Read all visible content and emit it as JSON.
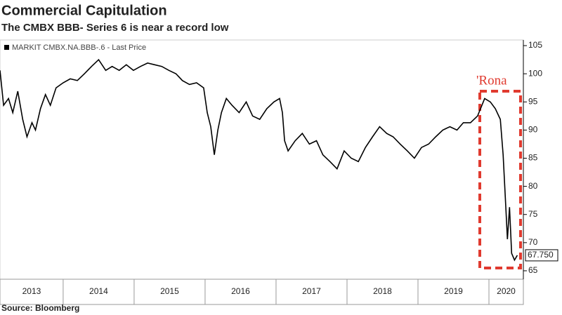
{
  "chart_data": {
    "type": "line",
    "title": "Commercial Capitulation",
    "subtitle": "The CMBX BBB- Series 6 is near a record low",
    "source": "Source: Bloomberg",
    "annotation": "'Rona",
    "x": [
      2013.11,
      2013.16,
      2013.23,
      2013.29,
      2013.36,
      2013.43,
      2013.49,
      2013.56,
      2013.61,
      2013.68,
      2013.75,
      2013.82,
      2013.9,
      2014.0,
      2014.1,
      2014.2,
      2014.3,
      2014.4,
      2014.5,
      2014.6,
      2014.69,
      2014.79,
      2014.89,
      2014.99,
      2015.09,
      2015.19,
      2015.29,
      2015.39,
      2015.49,
      2015.59,
      2015.68,
      2015.78,
      2015.88,
      2015.98,
      2016.03,
      2016.08,
      2016.13,
      2016.18,
      2016.23,
      2016.3,
      2016.38,
      2016.48,
      2016.58,
      2016.67,
      2016.77,
      2016.87,
      2016.97,
      2017.05,
      2017.09,
      2017.12,
      2017.17,
      2017.27,
      2017.37,
      2017.47,
      2017.57,
      2017.66,
      2017.76,
      2017.86,
      2017.96,
      2018.06,
      2018.16,
      2018.26,
      2018.36,
      2018.46,
      2018.56,
      2018.65,
      2018.75,
      2018.85,
      2018.95,
      2019.05,
      2019.15,
      2019.25,
      2019.35,
      2019.45,
      2019.55,
      2019.64,
      2019.74,
      2019.84,
      2019.94,
      2020.02,
      2020.09,
      2020.16,
      2020.2,
      2020.24,
      2020.26,
      2020.29,
      2020.32,
      2020.36,
      2020.4
    ],
    "series": [
      {
        "name": "MARKIT CMBX.NA.BBB-.6 - Last Price",
        "color": "#000000",
        "values": [
          100.6,
          94.4,
          95.6,
          93.1,
          96.9,
          91.9,
          88.8,
          91.3,
          90.0,
          93.8,
          96.3,
          94.4,
          97.5,
          98.4,
          99.1,
          98.8,
          100.0,
          101.3,
          102.5,
          100.6,
          101.3,
          100.6,
          101.6,
          100.6,
          101.3,
          101.9,
          101.6,
          101.3,
          100.6,
          100.0,
          98.8,
          98.1,
          98.4,
          97.5,
          93.1,
          90.6,
          85.6,
          90.0,
          93.1,
          95.6,
          94.4,
          93.1,
          95.0,
          92.5,
          91.9,
          93.8,
          95.0,
          95.6,
          93.1,
          88.1,
          86.3,
          88.1,
          89.4,
          87.5,
          88.1,
          85.6,
          84.4,
          83.1,
          86.3,
          85.0,
          84.4,
          86.9,
          88.8,
          90.6,
          89.4,
          88.8,
          87.5,
          86.3,
          85.0,
          86.9,
          87.5,
          88.8,
          90.0,
          90.6,
          90.0,
          91.3,
          91.3,
          92.5,
          95.6,
          95.0,
          93.8,
          91.9,
          85.6,
          75.6,
          70.6,
          76.3,
          68.1,
          66.9,
          67.75
        ],
        "value_labels": [
          null,
          null,
          null,
          null,
          null,
          null,
          null,
          null,
          null,
          null,
          null,
          null,
          null,
          null,
          null,
          null,
          null,
          null,
          null,
          null,
          null,
          null,
          null,
          null,
          null,
          null,
          null,
          null,
          null,
          null,
          null,
          null,
          null,
          null,
          null,
          null,
          null,
          null,
          null,
          null,
          null,
          null,
          null,
          null,
          null,
          null,
          null,
          null,
          null,
          null,
          null,
          null,
          null,
          null,
          null,
          null,
          null,
          null,
          null,
          null,
          null,
          null,
          null,
          null,
          null,
          null,
          null,
          null,
          null,
          null,
          null,
          null,
          null,
          null,
          null,
          null,
          null,
          null,
          null,
          null,
          null,
          null,
          null,
          null,
          null,
          null,
          null,
          null,
          "67.750"
        ]
      }
    ],
    "xlim": [
      2013.11,
      2020.485
    ],
    "xticks": [
      2013,
      2014,
      2015,
      2016,
      2017,
      2018,
      2019,
      2020
    ],
    "ylim": [
      63.5,
      106
    ],
    "yticks": [
      65,
      70,
      75,
      80,
      85,
      90,
      95,
      100,
      105
    ],
    "grid": false
  }
}
